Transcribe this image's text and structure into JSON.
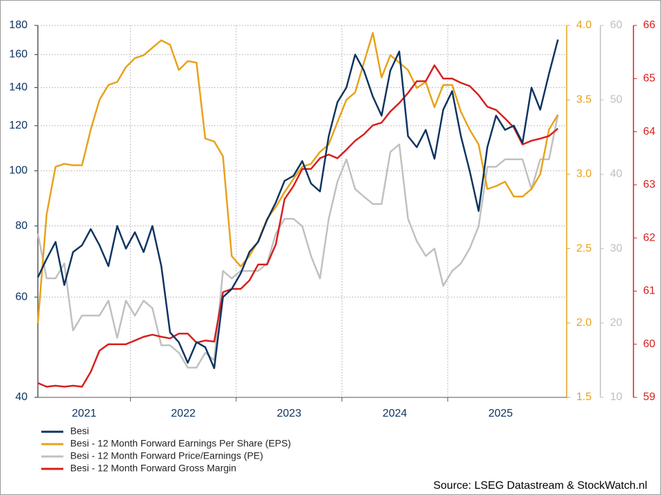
{
  "chart_data": {
    "type": "line",
    "source": "Source: LSEG Datastream & StockWatch.nl",
    "x": [
      2021.125,
      2021.208,
      2021.292,
      2021.375,
      2021.458,
      2021.542,
      2021.625,
      2021.708,
      2021.792,
      2021.875,
      2021.958,
      2022.042,
      2022.125,
      2022.208,
      2022.292,
      2022.375,
      2022.458,
      2022.542,
      2022.625,
      2022.708,
      2022.792,
      2022.875,
      2022.958,
      2023.042,
      2023.125,
      2023.208,
      2023.292,
      2023.375,
      2023.458,
      2023.542,
      2023.625,
      2023.708,
      2023.792,
      2023.875,
      2023.958,
      2024.042,
      2024.125,
      2024.208,
      2024.292,
      2024.375,
      2024.458,
      2024.542,
      2024.625,
      2024.708,
      2024.792,
      2024.875,
      2024.958,
      2025.042,
      2025.125,
      2025.208,
      2025.292,
      2025.375,
      2025.458,
      2025.542,
      2025.625,
      2025.708,
      2025.792,
      2025.875,
      2025.958,
      2026.042
    ],
    "xlim": [
      2021.125,
      2026.125
    ],
    "xticks": [
      {
        "value": 2021,
        "label": "2021"
      },
      {
        "value": 2022,
        "label": "2022"
      },
      {
        "value": 2023,
        "label": "2023"
      },
      {
        "value": 2024,
        "label": "2024"
      },
      {
        "value": 2025,
        "label": "2025"
      }
    ],
    "ylim": [
      40,
      180
    ],
    "ylog": true,
    "yticks": [
      40,
      60,
      80,
      100,
      120,
      140,
      160,
      180
    ],
    "y2lim": [
      1.5,
      4.0
    ],
    "y2ticks": [
      1.5,
      {
        "value": 2,
        "label": "2.0"
      },
      2.5,
      {
        "value": 3,
        "label": "3.0"
      },
      3.5,
      {
        "value": 4,
        "label": "4.0"
      }
    ],
    "y3lim": [
      10,
      60
    ],
    "y3ticks": [
      10,
      20,
      30,
      40,
      50,
      60
    ],
    "y4lim": [
      59,
      66
    ],
    "y4ticks": [
      59,
      60,
      61,
      62,
      63,
      64,
      65,
      66
    ],
    "grid": true,
    "legend": "bottom-left",
    "series": [
      {
        "name": "Besi",
        "color": "#0d3460",
        "axis": "y",
        "values": [
          65,
          70,
          75,
          63,
          72,
          74,
          79,
          74,
          68,
          80,
          73,
          78,
          72,
          80,
          68,
          52,
          50,
          46,
          50,
          49,
          45,
          60,
          62,
          66,
          72,
          75,
          82,
          88,
          96,
          98,
          104,
          95,
          92,
          115,
          132,
          140,
          160,
          150,
          135,
          125,
          150,
          162,
          115,
          110,
          118,
          105,
          128,
          138,
          115,
          100,
          85,
          110,
          125,
          118,
          120,
          112,
          140,
          128,
          148,
          170
        ]
      },
      {
        "name": "Besi - 12 Month Forward Earnings Per Share (EPS)",
        "color": "#e8a21a",
        "axis": "y2",
        "values": [
          2.0,
          2.73,
          3.05,
          3.07,
          3.06,
          3.06,
          3.3,
          3.5,
          3.6,
          3.62,
          3.72,
          3.78,
          3.8,
          3.85,
          3.9,
          3.87,
          3.7,
          3.76,
          3.75,
          3.24,
          3.22,
          3.12,
          2.45,
          2.38,
          2.45,
          2.55,
          2.7,
          2.78,
          2.88,
          2.97,
          3.05,
          3.07,
          3.15,
          3.2,
          3.35,
          3.5,
          3.55,
          3.75,
          3.95,
          3.65,
          3.8,
          3.75,
          3.7,
          3.58,
          3.62,
          3.45,
          3.6,
          3.6,
          3.42,
          3.3,
          3.2,
          2.9,
          2.92,
          2.95,
          2.85,
          2.85,
          2.9,
          3.0,
          3.3,
          3.4
        ]
      },
      {
        "name": "Besi - 12 Month Forward Price/Earnings (PE)",
        "color": "#c0c0c0",
        "axis": "y3",
        "values": [
          32,
          26,
          26,
          28,
          19,
          21,
          21,
          21,
          23,
          18,
          23,
          21,
          23,
          22,
          17,
          17,
          16,
          14,
          14,
          16,
          15,
          27,
          26,
          27,
          27,
          27,
          28,
          32,
          34,
          34,
          33,
          29,
          26,
          34,
          39,
          42,
          38,
          37,
          36,
          36,
          43,
          44,
          34,
          31,
          29,
          30,
          25,
          27,
          28,
          30,
          33,
          41,
          41,
          42,
          42,
          42,
          38,
          42,
          42,
          48
        ]
      },
      {
        "name": "Besi - 12 Month Forward Gross Margin",
        "color": "#d71e1e",
        "axis": "y4",
        "values": [
          59.27,
          59.2,
          59.22,
          59.2,
          59.22,
          59.2,
          59.48,
          59.88,
          60.0,
          60.0,
          60.0,
          60.07,
          60.14,
          60.18,
          60.14,
          60.11,
          60.2,
          60.2,
          60.03,
          60.07,
          60.05,
          60.98,
          61.04,
          61.04,
          61.2,
          61.5,
          61.5,
          61.88,
          62.73,
          62.98,
          63.3,
          63.3,
          63.5,
          63.57,
          63.5,
          63.66,
          63.83,
          63.95,
          64.12,
          64.17,
          64.38,
          64.54,
          64.73,
          64.95,
          64.95,
          65.25,
          65.0,
          65.0,
          64.92,
          64.86,
          64.69,
          64.47,
          64.41,
          64.25,
          64.08,
          63.76,
          63.83,
          63.87,
          63.92,
          64.06
        ]
      }
    ]
  }
}
